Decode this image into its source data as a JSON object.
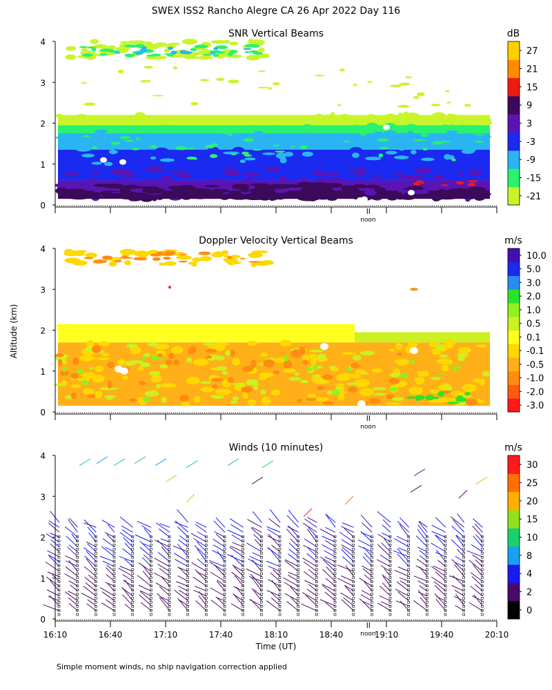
{
  "header": {
    "title": "SWEX ISS2 Rancho Alegre CA  26 Apr 2022 Day 116"
  },
  "footer": {
    "note": "Simple moment winds, no ship navigation correction applied"
  },
  "axes": {
    "ylabel": "Altitude (km)",
    "xlabel": "Time (UT)",
    "yticks": [
      "0",
      "1",
      "2",
      "3",
      "4"
    ],
    "xticks": [
      "16:10",
      "16:40",
      "17:10",
      "17:40",
      "18:10",
      "18:40",
      "19:10",
      "19:40",
      "20:10"
    ],
    "noon_label": "noon"
  },
  "colors": {
    "snr": [
      "#c8f52a",
      "#2af26e",
      "#2ab5f2",
      "#1a2af0",
      "#5a14b4",
      "#3c0a5a",
      "#f01a10",
      "#ff8c00",
      "#ffd000"
    ],
    "vel": [
      "#ff1a1a",
      "#ff5a10",
      "#ff8c10",
      "#ffb018",
      "#ffd800",
      "#ffff20",
      "#ccf020",
      "#90f020",
      "#2ae22a",
      "#2a8cf0",
      "#1a2af0",
      "#4010b0",
      "#5a0a78",
      "#2a0a2a"
    ],
    "wind": [
      "#000000",
      "#4a0a6a",
      "#1a1af0",
      "#1aa0f0",
      "#1ad070",
      "#90e020",
      "#ffb000",
      "#ff7000",
      "#ff1a1a"
    ]
  },
  "chart_data": [
    {
      "type": "heatmap",
      "title": "SNR Vertical Beams",
      "ylabel": "Altitude (km)",
      "xlabel": "",
      "x_range": [
        "16:10",
        "20:10"
      ],
      "ylim": [
        0,
        4
      ],
      "colorbar": {
        "unit": "dB",
        "labels": [
          "27",
          "21",
          "15",
          "9",
          "3",
          "-3",
          "-9",
          "-15",
          "-21"
        ]
      },
      "layers": [
        {
          "label": "-21",
          "band_km": [
            1.95,
            2.2
          ]
        },
        {
          "label": "-15",
          "band_km": [
            1.6,
            1.95
          ]
        },
        {
          "label": "-9",
          "band_km": [
            1.3,
            1.75
          ]
        },
        {
          "label": "-3",
          "band_km": [
            0.6,
            1.35
          ]
        },
        {
          "label": "3",
          "band_km": [
            0.15,
            0.6
          ]
        },
        {
          "label": "9",
          "band_km": [
            0.15,
            0.35
          ]
        }
      ],
      "upper_patch_km": [
        3.6,
        4.0
      ]
    },
    {
      "type": "heatmap",
      "title": "Doppler Velocity Vertical Beams",
      "ylabel": "Altitude (km)",
      "xlabel": "",
      "x_range": [
        "16:10",
        "20:10"
      ],
      "ylim": [
        0,
        4
      ],
      "colorbar": {
        "unit": "m/s",
        "labels": [
          "10.0",
          "5.0",
          "3.0",
          "2.0",
          "1.0",
          "0.5",
          "0.1",
          "-0.1",
          "-0.5",
          "-1.0",
          "-2.0",
          "-3.0"
        ]
      },
      "dominant_range": [
        "-1.0",
        "0.1"
      ]
    },
    {
      "type": "scatter",
      "title": "Winds (10 minutes)",
      "ylabel": "Altitude (km)",
      "xlabel": "Time (UT)",
      "x_range": [
        "16:10",
        "20:10"
      ],
      "ylim": [
        0,
        4
      ],
      "colorbar": {
        "unit": "m/s",
        "labels": [
          "30",
          "25",
          "20",
          "15",
          "10",
          "8",
          "4",
          "2",
          "0"
        ]
      },
      "profile_times": [
        "16:10",
        "16:20",
        "16:30",
        "16:40",
        "16:50",
        "17:00",
        "17:10",
        "17:20",
        "17:30",
        "17:40",
        "17:50",
        "18:00",
        "18:10",
        "18:20",
        "18:30",
        "18:40",
        "18:50",
        "19:00",
        "19:10",
        "19:20",
        "19:30",
        "19:40",
        "19:50",
        "20:00"
      ]
    }
  ]
}
